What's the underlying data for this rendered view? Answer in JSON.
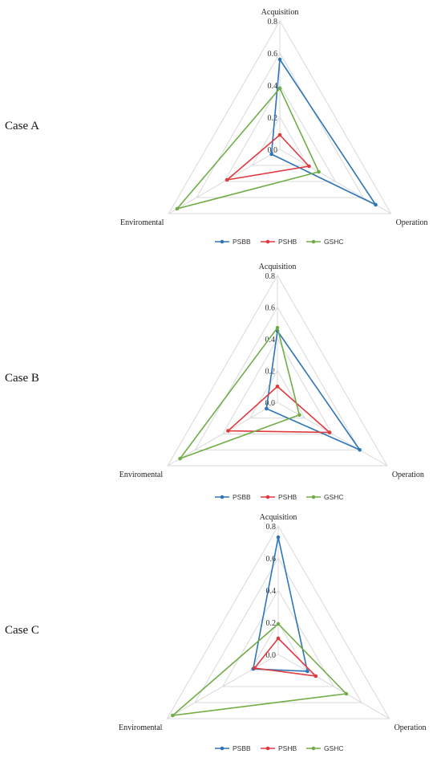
{
  "axes": [
    "Acquisition",
    "Operation",
    "Enviromental"
  ],
  "ticks": [
    "0.0",
    "0.2",
    "0.4",
    "0.6",
    "0.8"
  ],
  "legend": [
    "PSBB",
    "PSHB",
    "GSHC"
  ],
  "colors": {
    "PSBB": "#2E75B6",
    "PSHB": "#E0393E",
    "GSHC": "#70AD47"
  },
  "chart_data": [
    {
      "type": "radar",
      "case_label": "Case A",
      "categories": [
        "Acquisition",
        "Operation",
        "Enviromental"
      ],
      "rlim": [
        0,
        0.8
      ],
      "series": [
        {
          "name": "PSBB",
          "values": [
            0.56,
            0.69,
            0.06
          ]
        },
        {
          "name": "PSHB",
          "values": [
            0.09,
            0.21,
            0.38
          ]
        },
        {
          "name": "GSHC",
          "values": [
            0.38,
            0.28,
            0.74
          ]
        }
      ]
    },
    {
      "type": "radar",
      "case_label": "Case B",
      "categories": [
        "Acquisition",
        "Operation",
        "Enviromental"
      ],
      "rlim": [
        0,
        0.8
      ],
      "series": [
        {
          "name": "PSBB",
          "values": [
            0.45,
            0.6,
            0.08
          ]
        },
        {
          "name": "PSHB",
          "values": [
            0.1,
            0.38,
            0.36
          ]
        },
        {
          "name": "GSHC",
          "values": [
            0.47,
            0.16,
            0.71
          ]
        }
      ]
    },
    {
      "type": "radar",
      "case_label": "Case C",
      "categories": [
        "Acquisition",
        "Operation",
        "Enviromental"
      ],
      "rlim": [
        0,
        0.8
      ],
      "series": [
        {
          "name": "PSBB",
          "values": [
            0.73,
            0.21,
            0.18
          ]
        },
        {
          "name": "PSHB",
          "values": [
            0.1,
            0.27,
            0.17
          ]
        },
        {
          "name": "GSHC",
          "values": [
            0.19,
            0.49,
            0.76
          ]
        }
      ]
    }
  ]
}
